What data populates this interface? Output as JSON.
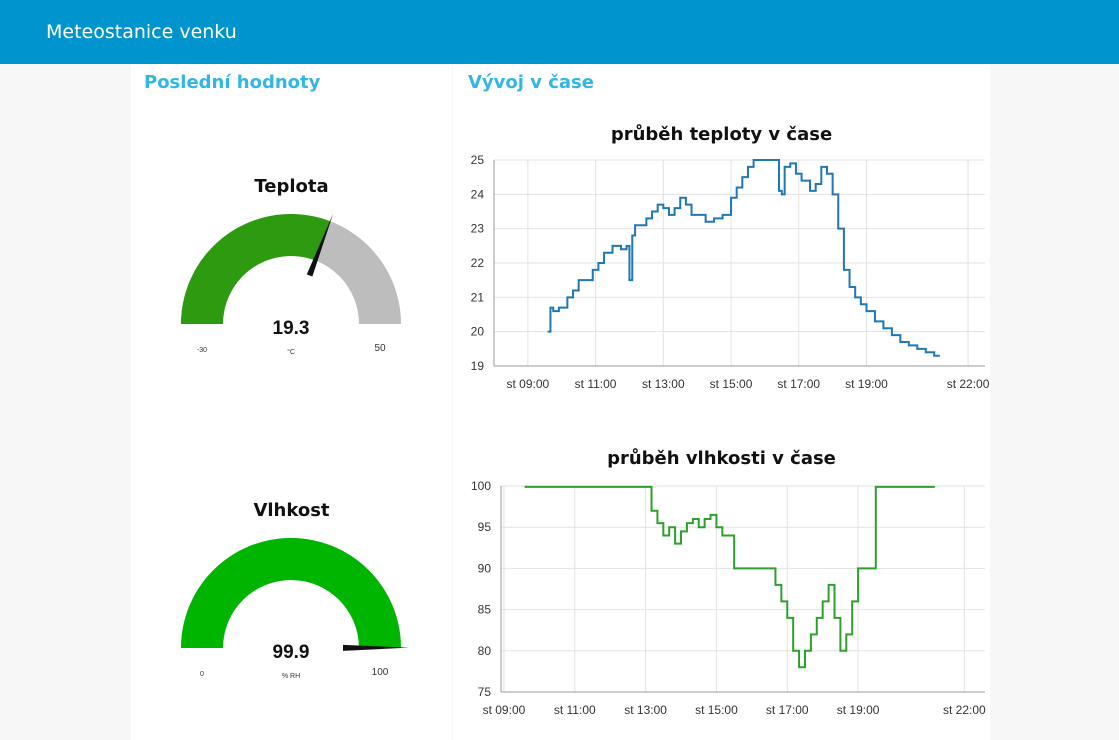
{
  "app": {
    "title": "Meteostanice venku"
  },
  "left": {
    "title": "Poslední hodnoty",
    "gauges": [
      {
        "title": "Teplota",
        "value_text": "19.3",
        "value": 19.3,
        "unit": "°C",
        "min_label": "-30",
        "max_label": "50",
        "min": -30,
        "max": 50,
        "fill_color": "#2e9a10",
        "track_color": "#bdbdbd"
      },
      {
        "title": "Vlhkost",
        "value_text": "99.9",
        "value": 99.9,
        "unit": "% RH",
        "min_label": "0",
        "max_label": "100",
        "min": 0,
        "max": 100,
        "fill_color": "#00b500",
        "track_color": "#bdbdbd"
      }
    ]
  },
  "right": {
    "title": "Vývoj v čase"
  },
  "chart_data": [
    {
      "type": "line",
      "title": "průběh teploty v čase",
      "xlabel": "",
      "ylabel": "",
      "ylim": [
        19,
        25
      ],
      "yticks": [
        "25",
        "24",
        "23",
        "22",
        "21",
        "20",
        "19"
      ],
      "xlim": [
        "08:00",
        "22:30"
      ],
      "xticks": [
        "st 09:00",
        "st 11:00",
        "st 13:00",
        "st 15:00",
        "st 17:00",
        "st 19:00",
        "st 22:00"
      ],
      "grid": true,
      "series": [
        {
          "color": "#1f77b4",
          "x": [
            "09:35",
            "09:40",
            "09:45",
            "09:55",
            "10:10",
            "10:20",
            "10:30",
            "10:40",
            "10:55",
            "11:05",
            "11:15",
            "11:30",
            "11:45",
            "11:55",
            "12:00",
            "12:05",
            "12:10",
            "12:20",
            "12:30",
            "12:40",
            "12:50",
            "13:00",
            "13:10",
            "13:20",
            "13:30",
            "13:40",
            "13:50",
            "14:00",
            "14:15",
            "14:30",
            "14:45",
            "15:00",
            "15:10",
            "15:20",
            "15:30",
            "15:40",
            "16:00",
            "16:15",
            "16:25",
            "16:30",
            "16:35",
            "16:45",
            "16:55",
            "17:05",
            "17:20",
            "17:30",
            "17:40",
            "17:50",
            "18:00",
            "18:10",
            "18:20",
            "18:30",
            "18:40",
            "18:50",
            "19:00",
            "19:15",
            "19:30",
            "19:45",
            "20:00",
            "20:15",
            "20:30",
            "20:45",
            "21:00",
            "21:10"
          ],
          "y": [
            20.0,
            20.7,
            20.6,
            20.7,
            21.0,
            21.2,
            21.5,
            21.5,
            21.8,
            22.0,
            22.3,
            22.5,
            22.4,
            22.5,
            21.5,
            22.8,
            23.1,
            23.1,
            23.3,
            23.5,
            23.7,
            23.6,
            23.4,
            23.6,
            23.9,
            23.7,
            23.4,
            23.4,
            23.2,
            23.3,
            23.4,
            23.9,
            24.2,
            24.5,
            24.8,
            25.0,
            25.0,
            25.0,
            24.1,
            24.0,
            24.8,
            24.9,
            24.6,
            24.4,
            24.1,
            24.3,
            24.8,
            24.6,
            24.0,
            23.0,
            21.8,
            21.3,
            21.0,
            20.8,
            20.6,
            20.3,
            20.1,
            19.9,
            19.7,
            19.6,
            19.5,
            19.4,
            19.3,
            19.3
          ]
        }
      ]
    },
    {
      "type": "line",
      "title": "průběh vlhkosti v čase",
      "xlabel": "",
      "ylabel": "",
      "ylim": [
        75,
        100
      ],
      "yticks": [
        "100",
        "95",
        "90",
        "85",
        "80",
        "75"
      ],
      "xlim": [
        "08:55",
        "22:35"
      ],
      "xticks": [
        "st 09:00",
        "st 11:00",
        "st 13:00",
        "st 15:00",
        "st 17:00",
        "st 19:00",
        "st 22:00"
      ],
      "grid": true,
      "series": [
        {
          "color": "#2ca02c",
          "x": [
            "09:35",
            "10:30",
            "11:30",
            "12:00",
            "12:35",
            "12:45",
            "13:00",
            "13:10",
            "13:20",
            "13:30",
            "13:40",
            "13:50",
            "14:00",
            "14:10",
            "14:20",
            "14:30",
            "14:40",
            "14:50",
            "15:00",
            "15:10",
            "15:30",
            "16:00",
            "16:30",
            "16:40",
            "16:50",
            "17:00",
            "17:10",
            "17:20",
            "17:30",
            "17:40",
            "17:50",
            "18:00",
            "18:10",
            "18:20",
            "18:30",
            "18:40",
            "18:50",
            "19:00",
            "19:30",
            "20:00",
            "20:30",
            "21:00",
            "21:10"
          ],
          "y": [
            99.9,
            99.9,
            99.9,
            99.9,
            99.9,
            99.9,
            99.9,
            97.0,
            95.5,
            94.0,
            95.0,
            93.0,
            94.5,
            95.5,
            96.0,
            95.0,
            96.0,
            96.5,
            95.0,
            94.0,
            90.0,
            90.0,
            90.0,
            88.0,
            86.0,
            84.0,
            80.0,
            78.0,
            80.0,
            82.0,
            84.0,
            86.0,
            88.0,
            84.0,
            80.0,
            82.0,
            86.0,
            90.0,
            99.9,
            99.9,
            99.9,
            99.9,
            99.9
          ]
        }
      ]
    }
  ]
}
